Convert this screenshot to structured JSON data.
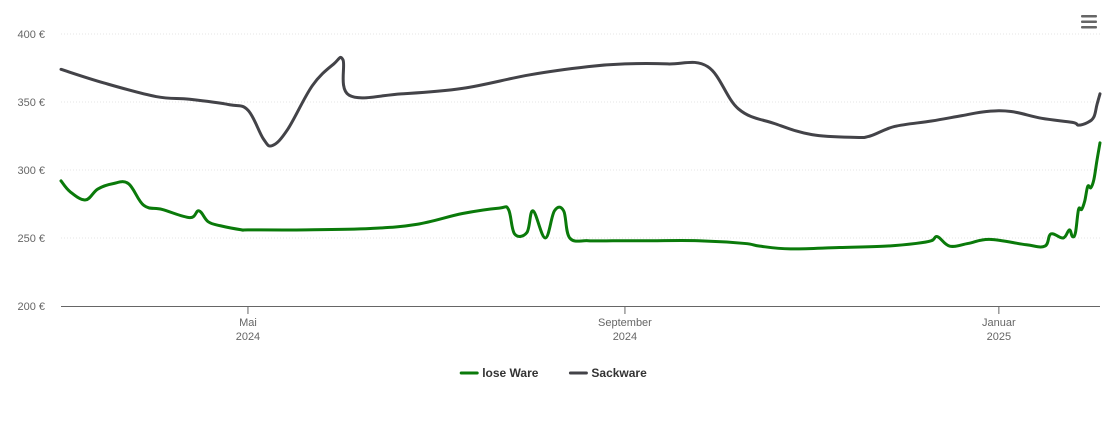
{
  "chart_data": {
    "type": "line",
    "title": "",
    "xlabel": "",
    "ylabel": "",
    "ylim": [
      200,
      400
    ],
    "yticks": [
      200,
      250,
      300,
      350,
      400
    ],
    "ytick_labels": [
      "200 €",
      "250 €",
      "300 €",
      "350 €",
      "400 €"
    ],
    "xlim": [
      "2024-03-01",
      "2025-02-03"
    ],
    "xticks": [
      {
        "date": "2024-05-01",
        "label": "Mai",
        "year": "2024"
      },
      {
        "date": "2024-09-01",
        "label": "September",
        "year": "2024"
      },
      {
        "date": "2025-01-01",
        "label": "Januar",
        "year": "2025"
      }
    ],
    "grid": true,
    "legend": "bottom-center",
    "series": [
      {
        "name": "lose Ware",
        "color": "#0a7a0a",
        "points": [
          [
            "2024-03-01",
            292
          ],
          [
            "2024-03-04",
            284
          ],
          [
            "2024-03-09",
            278
          ],
          [
            "2024-03-13",
            286
          ],
          [
            "2024-03-18",
            290
          ],
          [
            "2024-03-23",
            290
          ],
          [
            "2024-03-28",
            274
          ],
          [
            "2024-04-03",
            271
          ],
          [
            "2024-04-12",
            265
          ],
          [
            "2024-04-15",
            270
          ],
          [
            "2024-04-18",
            262
          ],
          [
            "2024-04-22",
            259
          ],
          [
            "2024-04-29",
            256
          ],
          [
            "2024-05-01",
            256
          ],
          [
            "2024-05-20",
            256
          ],
          [
            "2024-06-10",
            257
          ],
          [
            "2024-06-25",
            260
          ],
          [
            "2024-07-10",
            268
          ],
          [
            "2024-07-22",
            272
          ],
          [
            "2024-07-25",
            271
          ],
          [
            "2024-07-27",
            253
          ],
          [
            "2024-07-31",
            254
          ],
          [
            "2024-08-02",
            270
          ],
          [
            "2024-08-06",
            250
          ],
          [
            "2024-08-09",
            270
          ],
          [
            "2024-08-12",
            270
          ],
          [
            "2024-08-14",
            250
          ],
          [
            "2024-08-20",
            248
          ],
          [
            "2024-08-28",
            248
          ],
          [
            "2024-09-05",
            248
          ],
          [
            "2024-09-10",
            248
          ],
          [
            "2024-09-25",
            248
          ],
          [
            "2024-10-10",
            246
          ],
          [
            "2024-10-15",
            244
          ],
          [
            "2024-10-25",
            242
          ],
          [
            "2024-11-10",
            243
          ],
          [
            "2024-11-25",
            244
          ],
          [
            "2024-12-05",
            246
          ],
          [
            "2024-12-10",
            248
          ],
          [
            "2024-12-12",
            251
          ],
          [
            "2024-12-16",
            244
          ],
          [
            "2024-12-22",
            246
          ],
          [
            "2024-12-29",
            249
          ],
          [
            "2025-01-10",
            245
          ],
          [
            "2025-01-16",
            244
          ],
          [
            "2025-01-18",
            253
          ],
          [
            "2025-01-22",
            250
          ],
          [
            "2025-01-24",
            256
          ],
          [
            "2025-01-25",
            251
          ],
          [
            "2025-01-26",
            254
          ],
          [
            "2025-01-27",
            271
          ],
          [
            "2025-01-28",
            271
          ],
          [
            "2025-01-29",
            277
          ],
          [
            "2025-01-30",
            288
          ],
          [
            "2025-01-31",
            287
          ],
          [
            "2025-02-01",
            293
          ],
          [
            "2025-02-02",
            307
          ],
          [
            "2025-02-03",
            320
          ]
        ]
      },
      {
        "name": "Sackware",
        "color": "#434348",
        "points": [
          [
            "2024-03-01",
            374
          ],
          [
            "2024-03-15",
            364
          ],
          [
            "2024-04-01",
            354
          ],
          [
            "2024-04-12",
            352
          ],
          [
            "2024-04-25",
            348
          ],
          [
            "2024-05-01",
            344
          ],
          [
            "2024-05-06",
            323
          ],
          [
            "2024-05-09",
            318
          ],
          [
            "2024-05-14",
            330
          ],
          [
            "2024-05-22",
            362
          ],
          [
            "2024-05-29",
            378
          ],
          [
            "2024-06-01",
            381
          ],
          [
            "2024-06-03",
            355
          ],
          [
            "2024-06-20",
            356
          ],
          [
            "2024-07-10",
            360
          ],
          [
            "2024-08-01",
            370
          ],
          [
            "2024-08-20",
            376
          ],
          [
            "2024-09-01",
            378
          ],
          [
            "2024-09-15",
            378
          ],
          [
            "2024-09-28",
            376
          ],
          [
            "2024-10-08",
            345
          ],
          [
            "2024-10-20",
            334
          ],
          [
            "2024-11-01",
            326
          ],
          [
            "2024-11-15",
            324
          ],
          [
            "2024-11-20",
            325
          ],
          [
            "2024-11-28",
            332
          ],
          [
            "2024-12-10",
            336
          ],
          [
            "2024-12-20",
            340
          ],
          [
            "2024-12-28",
            343
          ],
          [
            "2025-01-05",
            343
          ],
          [
            "2025-01-15",
            338
          ],
          [
            "2025-01-25",
            335
          ],
          [
            "2025-01-27",
            333
          ],
          [
            "2025-01-30",
            335
          ],
          [
            "2025-02-01",
            339
          ],
          [
            "2025-02-02",
            348
          ],
          [
            "2025-02-03",
            356
          ]
        ]
      }
    ]
  },
  "ui": {
    "menu_icon": "hamburger-menu-icon"
  }
}
